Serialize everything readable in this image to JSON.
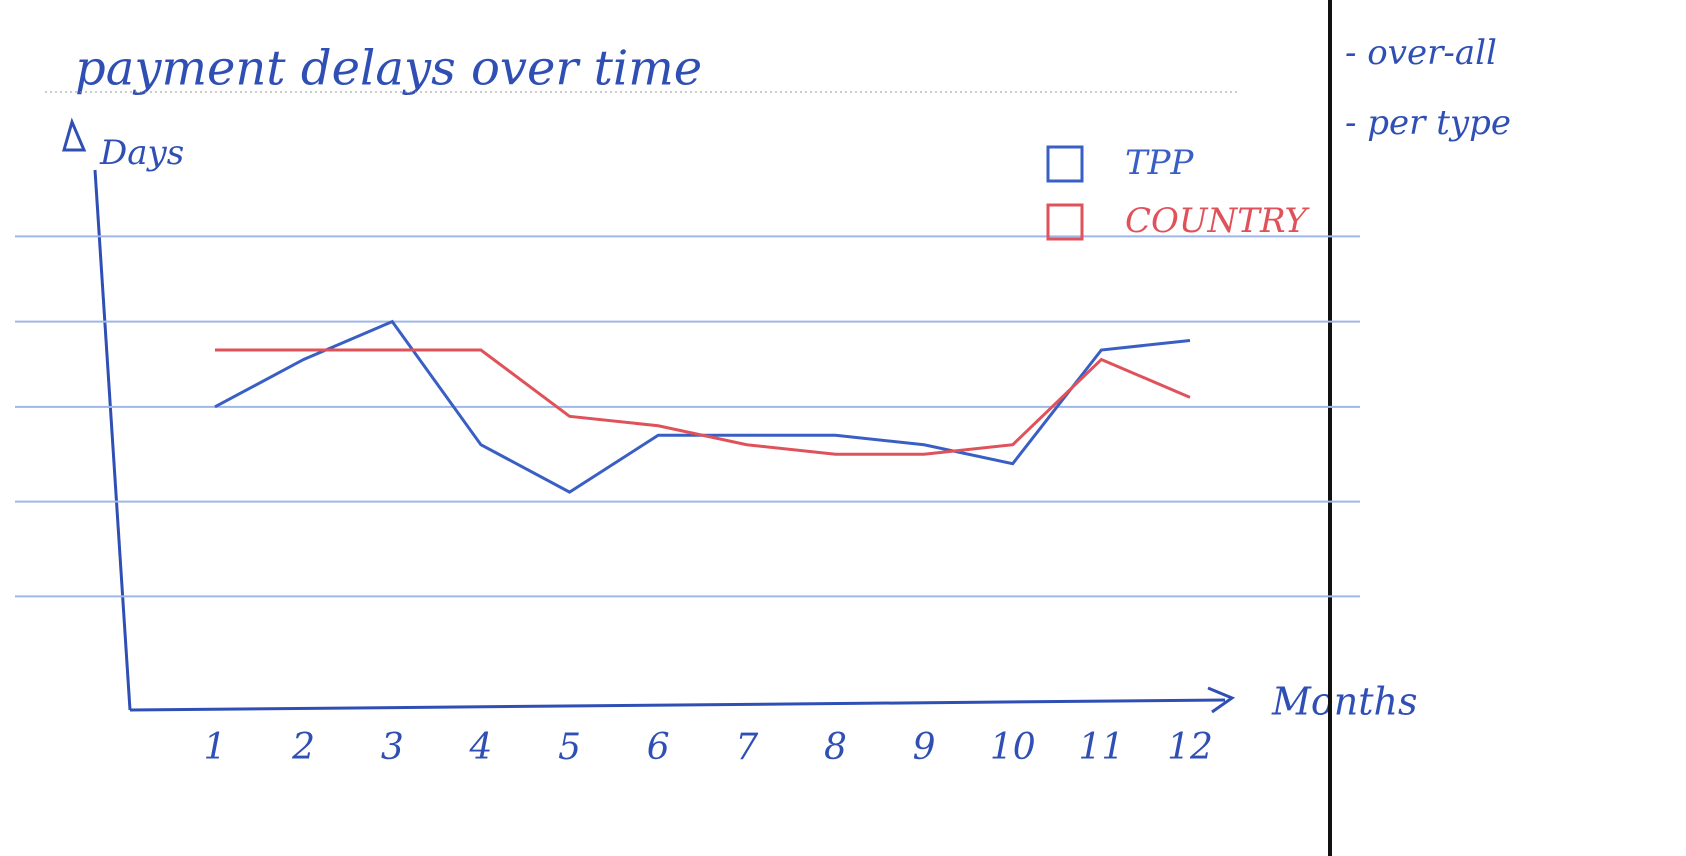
{
  "chart_data": {
    "type": "line",
    "title": "payment delays over time",
    "y_label": "Days",
    "x_label": "Months",
    "categories": [
      "1",
      "2",
      "3",
      "4",
      "5",
      "6",
      "7",
      "8",
      "9",
      "10",
      "11",
      "12"
    ],
    "series": [
      {
        "name": "TPP",
        "color": "#3a5fc4",
        "values": [
          3.2,
          3.7,
          4.1,
          2.8,
          2.3,
          2.9,
          2.9,
          2.9,
          2.8,
          2.6,
          3.8,
          3.9
        ]
      },
      {
        "name": "COUNTRY",
        "color": "#e0525a",
        "values": [
          3.8,
          3.8,
          3.8,
          3.8,
          3.1,
          3.0,
          2.8,
          2.7,
          2.7,
          2.8,
          3.7,
          3.3
        ]
      }
    ],
    "ylim": [
      0,
      5.7
    ],
    "gridlines": [
      1.2,
      2.2,
      3.2,
      4.1,
      5
    ],
    "grid": true
  },
  "side_notes": [
    "- over-all",
    "- per type"
  ]
}
